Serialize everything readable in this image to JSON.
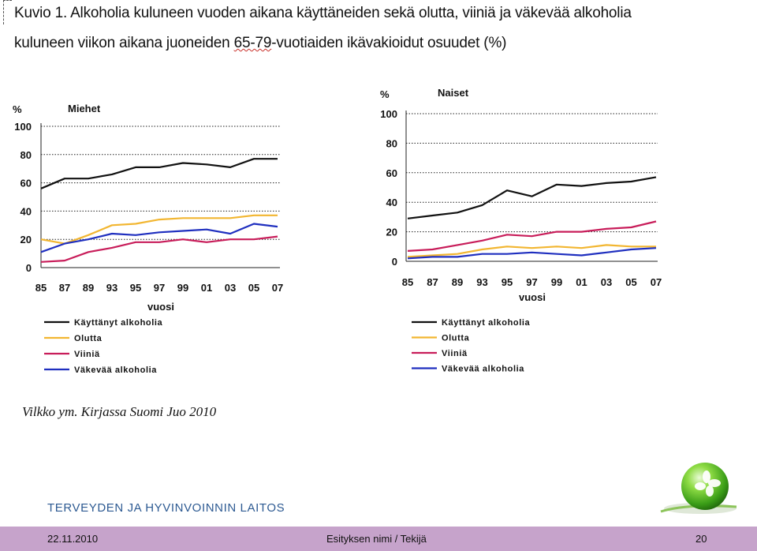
{
  "slide": {
    "title_prefix": "Kuvio 1. Alkoholia kuluneen vuoden aikana käyttäneiden sekä olutta, viiniä ja väkevää alkoholia",
    "title_line2_before": "kuluneen viikon aikana juoneiden ",
    "title_line2_wavy": "65-79",
    "title_line2_after": "-vuotiaiden ikävakioidut osuudet (%)",
    "source": "Vilkko ym. Kirjassa Suomi Juo 2010",
    "institute": "TERVEYDEN JA HYVINVOINNIN LAITOS",
    "footer": {
      "date": "22.11.2010",
      "title": "Esityksen nimi / Tekijä",
      "page": "20"
    },
    "logo_icon": "green-leaf-sphere-icon"
  },
  "series_colors": {
    "Käyttänyt alkoholia": "#111111",
    "Olutta": "#f2b631",
    "Viiniä": "#c81d5a",
    "Väkevää alkoholia": "#1f2fbf"
  },
  "chart_data": [
    {
      "type": "line",
      "title": "Miehet",
      "ylabel": "%",
      "xlabel": "vuosi",
      "x": [
        "85",
        "87",
        "89",
        "93",
        "95",
        "97",
        "99",
        "01",
        "03",
        "05",
        "07"
      ],
      "ylim": [
        0,
        100
      ],
      "yticks": [
        0,
        20,
        40,
        60,
        80,
        100
      ],
      "grid": "horizontal dotted",
      "legend": "below",
      "series": [
        {
          "name": "Käyttänyt alkoholia",
          "values": [
            56,
            63,
            63,
            66,
            71,
            71,
            74,
            73,
            71,
            77,
            77
          ]
        },
        {
          "name": "Olutta",
          "values": [
            20,
            17,
            23,
            30,
            31,
            34,
            35,
            35,
            35,
            37,
            37
          ]
        },
        {
          "name": "Viiniä",
          "values": [
            4,
            5,
            11,
            14,
            18,
            18,
            20,
            18,
            20,
            20,
            22
          ]
        },
        {
          "name": "Väkevää alkoholia",
          "values": [
            11,
            17,
            20,
            24,
            23,
            25,
            26,
            27,
            24,
            31,
            29
          ]
        }
      ]
    },
    {
      "type": "line",
      "title": "Naiset",
      "ylabel": "%",
      "xlabel": "vuosi",
      "x": [
        "85",
        "87",
        "89",
        "93",
        "95",
        "97",
        "99",
        "01",
        "03",
        "05",
        "07"
      ],
      "ylim": [
        0,
        100
      ],
      "yticks": [
        0,
        20,
        40,
        60,
        80,
        100
      ],
      "grid": "horizontal dotted",
      "legend": "below",
      "series": [
        {
          "name": "Käyttänyt alkoholia",
          "values": [
            29,
            31,
            33,
            38,
            48,
            44,
            52,
            51,
            53,
            54,
            57
          ]
        },
        {
          "name": "Olutta",
          "values": [
            3,
            4,
            5,
            8,
            10,
            9,
            10,
            9,
            11,
            10,
            10
          ]
        },
        {
          "name": "Viiniä",
          "values": [
            7,
            8,
            11,
            14,
            18,
            17,
            20,
            20,
            22,
            23,
            27
          ]
        },
        {
          "name": "Väkevää alkoholia",
          "values": [
            2,
            3,
            3,
            5,
            5,
            6,
            5,
            4,
            6,
            8,
            9
          ]
        }
      ]
    }
  ]
}
